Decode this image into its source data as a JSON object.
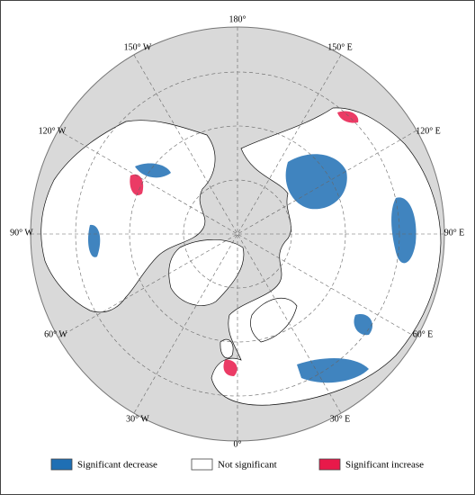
{
  "map": {
    "longitude_labels": [
      "180°",
      "150° W",
      "150° E",
      "120° W",
      "120° E",
      "90° W",
      "90° E",
      "60° W",
      "60° E",
      "30° W",
      "30° E",
      "0°"
    ],
    "legend": [
      {
        "label": "Significant decrease",
        "color": "#1f6fb4"
      },
      {
        "label": "Not significant",
        "color": "#ffffff"
      },
      {
        "label": "Significant increase",
        "color": "#e8194a"
      }
    ]
  }
}
